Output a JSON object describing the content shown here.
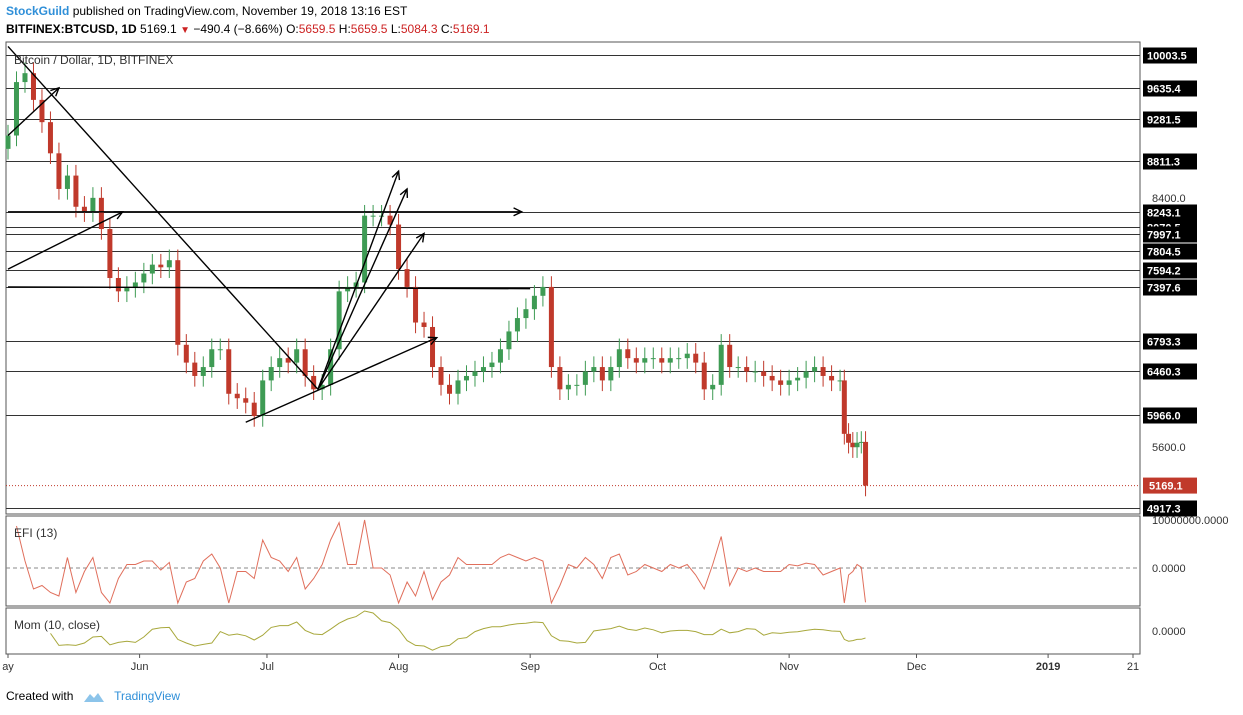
{
  "header": {
    "brand": "StockGuild",
    "published": "published on TradingView.com, November 19, 2018 13:16 EST",
    "symbol": "BITFINEX:BTCUSD, 1D",
    "last": "5169.1",
    "change": "−490.4 (−8.66%)",
    "o_label": "O:",
    "o": "5659.5",
    "h_label": "H:",
    "h": "5659.5",
    "l_label": "L:",
    "l": "5084.3",
    "c_label": "C:",
    "c": "5169.1"
  },
  "pane_titles": {
    "main": "Bitcoin / Dollar, 1D, BITFINEX",
    "efi": "EFI (13)",
    "mom": "Mom (10, close)"
  },
  "footer": {
    "created_with": "Created with",
    "brand": "TradingView"
  },
  "colors": {
    "up": "#3e9b54",
    "down": "#c0392b",
    "efi": "#e06f5c",
    "mom": "#a8a83c",
    "brand": "#2f8fd8"
  },
  "chart_data": {
    "type": "candlestick",
    "title": "Bitcoin / Dollar, 1D, BITFINEX",
    "ylim": [
      4850,
      10150
    ],
    "level_lines": [
      10003.5,
      9635.4,
      9281.5,
      8811.3,
      8243.1,
      8070.5,
      7997.1,
      7804.5,
      7594.2,
      7397.6,
      6793.3,
      6460.3,
      5966.0,
      4917.3
    ],
    "level_labels": [
      "10003.5",
      "9635.4",
      "9281.5",
      "8811.3",
      "8243.1",
      "8070.5",
      "7997.1",
      "7804.5",
      "7594.2",
      "7397.6",
      "6793.3",
      "6460.3",
      "5966.0",
      "4917.3"
    ],
    "y_ticks": [
      "8400.0",
      "5600.0"
    ],
    "last_price": "5169.1",
    "x_tick_labels": [
      "ay",
      "Jun",
      "Jul",
      "Aug",
      "Sep",
      "Oct",
      "Nov",
      "Dec",
      "2019",
      "21"
    ],
    "x_tick_dates": [
      "2018-05-01",
      "2018-06-01",
      "2018-07-01",
      "2018-08-01",
      "2018-09-01",
      "2018-10-01",
      "2018-11-01",
      "2018-12-01",
      "2019-01-01",
      "2019-01-21"
    ],
    "closes": [
      {
        "date": "2018-05-01",
        "close": 9100
      },
      {
        "date": "2018-05-03",
        "close": 9700
      },
      {
        "date": "2018-05-05",
        "close": 9800
      },
      {
        "date": "2018-05-07",
        "close": 9500
      },
      {
        "date": "2018-05-09",
        "close": 9250
      },
      {
        "date": "2018-05-11",
        "close": 8900
      },
      {
        "date": "2018-05-13",
        "close": 8500
      },
      {
        "date": "2018-05-15",
        "close": 8650
      },
      {
        "date": "2018-05-17",
        "close": 8300
      },
      {
        "date": "2018-05-19",
        "close": 8250
      },
      {
        "date": "2018-05-21",
        "close": 8400
      },
      {
        "date": "2018-05-23",
        "close": 8050
      },
      {
        "date": "2018-05-25",
        "close": 7500
      },
      {
        "date": "2018-05-27",
        "close": 7350
      },
      {
        "date": "2018-05-29",
        "close": 7400
      },
      {
        "date": "2018-05-31",
        "close": 7450
      },
      {
        "date": "2018-06-02",
        "close": 7550
      },
      {
        "date": "2018-06-04",
        "close": 7650
      },
      {
        "date": "2018-06-06",
        "close": 7620
      },
      {
        "date": "2018-06-08",
        "close": 7700
      },
      {
        "date": "2018-06-10",
        "close": 6750
      },
      {
        "date": "2018-06-12",
        "close": 6550
      },
      {
        "date": "2018-06-14",
        "close": 6400
      },
      {
        "date": "2018-06-16",
        "close": 6500
      },
      {
        "date": "2018-06-18",
        "close": 6700
      },
      {
        "date": "2018-06-20",
        "close": 6700
      },
      {
        "date": "2018-06-22",
        "close": 6200
      },
      {
        "date": "2018-06-24",
        "close": 6150
      },
      {
        "date": "2018-06-26",
        "close": 6100
      },
      {
        "date": "2018-06-28",
        "close": 5950
      },
      {
        "date": "2018-06-30",
        "close": 6350
      },
      {
        "date": "2018-07-02",
        "close": 6500
      },
      {
        "date": "2018-07-04",
        "close": 6600
      },
      {
        "date": "2018-07-06",
        "close": 6550
      },
      {
        "date": "2018-07-08",
        "close": 6700
      },
      {
        "date": "2018-07-10",
        "close": 6400
      },
      {
        "date": "2018-07-12",
        "close": 6250
      },
      {
        "date": "2018-07-14",
        "close": 6300
      },
      {
        "date": "2018-07-16",
        "close": 6700
      },
      {
        "date": "2018-07-18",
        "close": 7350
      },
      {
        "date": "2018-07-20",
        "close": 7400
      },
      {
        "date": "2018-07-22",
        "close": 7450
      },
      {
        "date": "2018-07-24",
        "close": 8200
      },
      {
        "date": "2018-07-26",
        "close": 8200
      },
      {
        "date": "2018-07-28",
        "close": 8200
      },
      {
        "date": "2018-07-30",
        "close": 8100
      },
      {
        "date": "2018-08-01",
        "close": 7600
      },
      {
        "date": "2018-08-03",
        "close": 7400
      },
      {
        "date": "2018-08-05",
        "close": 7000
      },
      {
        "date": "2018-08-07",
        "close": 6950
      },
      {
        "date": "2018-08-09",
        "close": 6500
      },
      {
        "date": "2018-08-11",
        "close": 6300
      },
      {
        "date": "2018-08-13",
        "close": 6200
      },
      {
        "date": "2018-08-15",
        "close": 6350
      },
      {
        "date": "2018-08-17",
        "close": 6400
      },
      {
        "date": "2018-08-19",
        "close": 6450
      },
      {
        "date": "2018-08-21",
        "close": 6500
      },
      {
        "date": "2018-08-23",
        "close": 6550
      },
      {
        "date": "2018-08-25",
        "close": 6700
      },
      {
        "date": "2018-08-27",
        "close": 6900
      },
      {
        "date": "2018-08-29",
        "close": 7050
      },
      {
        "date": "2018-08-31",
        "close": 7150
      },
      {
        "date": "2018-09-02",
        "close": 7300
      },
      {
        "date": "2018-09-04",
        "close": 7400
      },
      {
        "date": "2018-09-06",
        "close": 6500
      },
      {
        "date": "2018-09-08",
        "close": 6250
      },
      {
        "date": "2018-09-10",
        "close": 6300
      },
      {
        "date": "2018-09-12",
        "close": 6300
      },
      {
        "date": "2018-09-14",
        "close": 6450
      },
      {
        "date": "2018-09-16",
        "close": 6500
      },
      {
        "date": "2018-09-18",
        "close": 6350
      },
      {
        "date": "2018-09-20",
        "close": 6500
      },
      {
        "date": "2018-09-22",
        "close": 6700
      },
      {
        "date": "2018-09-24",
        "close": 6600
      },
      {
        "date": "2018-09-26",
        "close": 6550
      },
      {
        "date": "2018-09-28",
        "close": 6600
      },
      {
        "date": "2018-09-30",
        "close": 6600
      },
      {
        "date": "2018-10-02",
        "close": 6550
      },
      {
        "date": "2018-10-04",
        "close": 6600
      },
      {
        "date": "2018-10-06",
        "close": 6600
      },
      {
        "date": "2018-10-08",
        "close": 6650
      },
      {
        "date": "2018-10-10",
        "close": 6550
      },
      {
        "date": "2018-10-12",
        "close": 6250
      },
      {
        "date": "2018-10-14",
        "close": 6300
      },
      {
        "date": "2018-10-16",
        "close": 6750
      },
      {
        "date": "2018-10-18",
        "close": 6500
      },
      {
        "date": "2018-10-20",
        "close": 6500
      },
      {
        "date": "2018-10-22",
        "close": 6450
      },
      {
        "date": "2018-10-24",
        "close": 6450
      },
      {
        "date": "2018-10-26",
        "close": 6400
      },
      {
        "date": "2018-10-28",
        "close": 6350
      },
      {
        "date": "2018-10-30",
        "close": 6300
      },
      {
        "date": "2018-11-01",
        "close": 6350
      },
      {
        "date": "2018-11-03",
        "close": 6380
      },
      {
        "date": "2018-11-05",
        "close": 6450
      },
      {
        "date": "2018-11-07",
        "close": 6500
      },
      {
        "date": "2018-11-09",
        "close": 6400
      },
      {
        "date": "2018-11-11",
        "close": 6350
      },
      {
        "date": "2018-11-13",
        "close": 6350
      },
      {
        "date": "2018-11-14",
        "close": 5750
      },
      {
        "date": "2018-11-15",
        "close": 5650
      },
      {
        "date": "2018-11-16",
        "close": 5600
      },
      {
        "date": "2018-11-17",
        "close": 5650
      },
      {
        "date": "2018-11-18",
        "close": 5659.5
      },
      {
        "date": "2018-11-19",
        "close": 5169.1
      }
    ],
    "efi_zero_label": "0.0000",
    "efi_top_label": "10000000.0000",
    "mom_zero_label": "0.0000"
  }
}
